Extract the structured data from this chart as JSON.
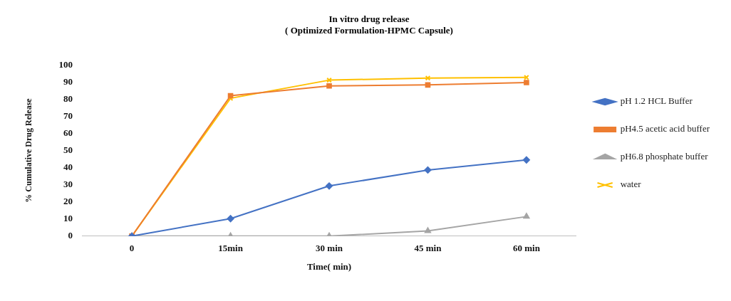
{
  "chart_data": {
    "type": "line",
    "title": "In vitro drug release",
    "subtitle": "( Optimized Formulation-HPMC Capsule)",
    "xlabel": "Time( min)",
    "ylabel": "% Cumulative Drug Release",
    "categories": [
      "0",
      "15min",
      "30 min",
      "45 min",
      "60 min"
    ],
    "series": [
      {
        "name": "pH 1.2 HCL Buffer",
        "color": "#4472c4",
        "marker": "diamond",
        "values": [
          0,
          10.2,
          29.3,
          38.6,
          44.5
        ]
      },
      {
        "name": "pH4.5 acetic acid buffer",
        "color": "#ed7d31",
        "marker": "square",
        "values": [
          0,
          82,
          87.7,
          88.3,
          89.7
        ]
      },
      {
        "name": "pH6.8 phosphate buffer",
        "color": "#a5a5a5",
        "marker": "triangle",
        "values": [
          0,
          0,
          0,
          3,
          11.4
        ]
      },
      {
        "name": "water",
        "color": "#ffc000",
        "marker": "cross",
        "values": [
          0,
          80.5,
          91.1,
          92.3,
          92.7
        ]
      }
    ],
    "ylim": [
      0,
      100
    ],
    "yticks": [
      0,
      10,
      20,
      30,
      40,
      50,
      60,
      70,
      80,
      90,
      100
    ],
    "grid": false,
    "legend": "right"
  }
}
